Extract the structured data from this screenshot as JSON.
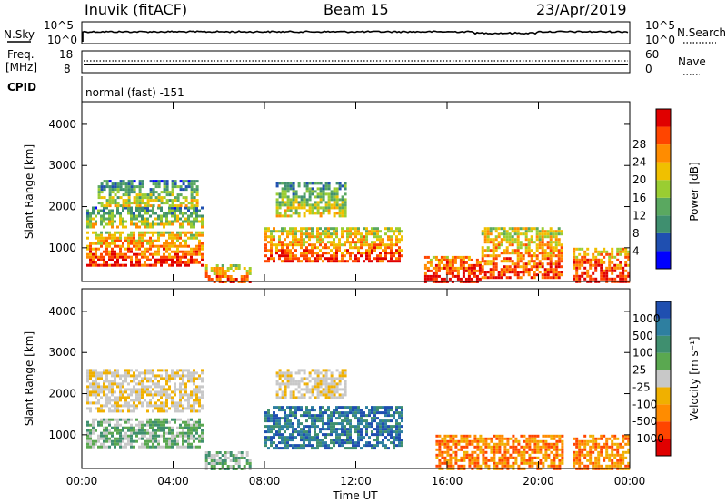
{
  "header": {
    "station": "Inuvik (fitACF)",
    "beam": "Beam 15",
    "date": "23/Apr/2019"
  },
  "colors": {
    "scatter_blue": "#1f4fb0",
    "ground_gray": "#c8c8c8",
    "power_scale": [
      "#0000ff",
      "#1f4fb0",
      "#3f8f6f",
      "#5aa860",
      "#9acd32",
      "#f0c000",
      "#ff8c00",
      "#ff4500",
      "#e00000"
    ],
    "velocity_scale": [
      "#e00000",
      "#ff4500",
      "#ff8c00",
      "#f0b000",
      "#c8c8c8",
      "#5aa850",
      "#3f8f6f",
      "#2e7fa0",
      "#1f4fb0"
    ]
  },
  "panels": {
    "nsky": {
      "label": "N.Sky",
      "left_ticks": [
        "10^5",
        "10^0"
      ],
      "right_label": "N.Search",
      "right_ticks": [
        "10^5",
        "10^0"
      ]
    },
    "freq": {
      "label_line1": "Freq.",
      "label_line2": "[MHz]",
      "left_ticks": [
        "18",
        "8"
      ],
      "right_label": "Nave",
      "right_ticks": [
        "60",
        "0"
      ]
    },
    "cpid": {
      "label": "CPID",
      "text": "normal (fast) -151"
    }
  },
  "chart_data": [
    {
      "type": "heatmap",
      "name": "power",
      "ylabel": "Slant Range [km]",
      "yticks": [
        1000,
        2000,
        3000,
        4000
      ],
      "ylim": [
        180,
        4550
      ],
      "xlim": [
        0,
        24
      ],
      "colorbar": {
        "label": "Power [dB]",
        "ticks": [
          "4",
          "8",
          "12",
          "16",
          "20",
          "24",
          "28"
        ],
        "range": [
          0,
          32
        ]
      },
      "regions": [
        {
          "t0": 0.2,
          "t1": 5.3,
          "r0": 600,
          "r1": 1400,
          "level": 0.75
        },
        {
          "t0": 0.2,
          "t1": 5.3,
          "r0": 1500,
          "r1": 2000,
          "level": 0.45
        },
        {
          "t0": 0.7,
          "t1": 5.0,
          "r0": 2050,
          "r1": 2650,
          "level": 0.4
        },
        {
          "t0": 5.4,
          "t1": 7.4,
          "r0": 180,
          "r1": 600,
          "level": 0.7
        },
        {
          "t0": 8.0,
          "t1": 14.0,
          "r0": 700,
          "r1": 1500,
          "level": 0.7
        },
        {
          "t0": 8.5,
          "t1": 11.5,
          "r0": 1800,
          "r1": 2600,
          "level": 0.45
        },
        {
          "t0": 15.0,
          "t1": 17.5,
          "r0": 180,
          "r1": 800,
          "level": 0.85
        },
        {
          "t0": 17.5,
          "t1": 21.0,
          "r0": 300,
          "r1": 1500,
          "level": 0.7
        },
        {
          "t0": 21.5,
          "t1": 24.0,
          "r0": 200,
          "r1": 1000,
          "level": 0.8
        }
      ]
    },
    {
      "type": "heatmap",
      "name": "velocity",
      "ylabel": "Slant Range [km]",
      "yticks": [
        1000,
        2000,
        3000,
        4000
      ],
      "ylim": [
        180,
        4550
      ],
      "xlim": [
        0,
        24
      ],
      "xticks": [
        "00:00",
        "04:00",
        "08:00",
        "12:00",
        "16:00",
        "20:00",
        "00:00"
      ],
      "xlabel": "Time UT",
      "colorbar": {
        "label": "Velocity [m s⁻¹]",
        "ticks": [
          "1000",
          "500",
          "100",
          "25",
          "-25",
          "-100",
          "-500",
          "-1000"
        ]
      },
      "regions": [
        {
          "t0": 0.2,
          "t1": 5.3,
          "r0": 700,
          "r1": 1400,
          "class": "green"
        },
        {
          "t0": 0.2,
          "t1": 5.3,
          "r0": 1600,
          "r1": 2600,
          "class": "gray"
        },
        {
          "t0": 5.4,
          "t1": 7.4,
          "r0": 180,
          "r1": 600,
          "class": "green"
        },
        {
          "t0": 8.0,
          "t1": 14.0,
          "r0": 700,
          "r1": 1700,
          "class": "blue"
        },
        {
          "t0": 8.5,
          "t1": 11.5,
          "r0": 1900,
          "r1": 2600,
          "class": "gray"
        },
        {
          "t0": 15.5,
          "t1": 21.0,
          "r0": 180,
          "r1": 1000,
          "class": "orange"
        },
        {
          "t0": 21.5,
          "t1": 24.0,
          "r0": 200,
          "r1": 1000,
          "class": "orange"
        }
      ]
    }
  ]
}
